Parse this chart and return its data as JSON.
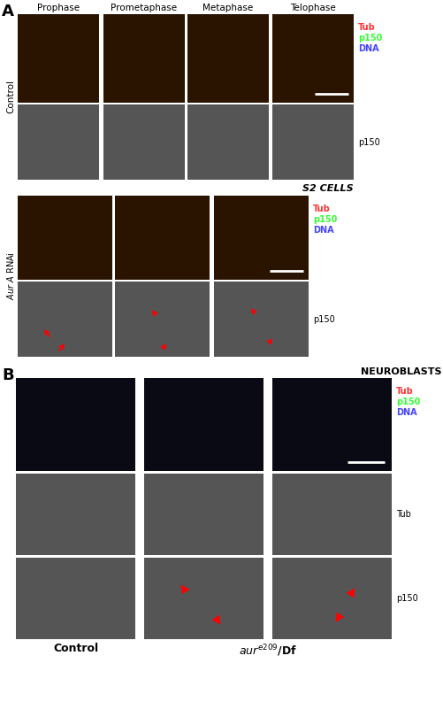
{
  "figure_width": 5.02,
  "figure_height": 7.93,
  "background_color": "#ffffff",
  "panel_A_label": "A",
  "panel_B_label": "B",
  "panel_A_top_labels": [
    "Prophase",
    "Prometaphase",
    "Metaphase",
    "Telophase"
  ],
  "s2_cells_label": "S2 CELLS",
  "neuroblasts_label": "NEUROBLASTS",
  "legend_colors": {
    "tub": "#ff0000",
    "p150": "#00ff00",
    "dna": "#0000ff"
  },
  "control_bottom_label": "Control",
  "aur_mutant_label": "aur$^{e209}$/Df",
  "scalebar_color": "#ffffff",
  "arrow_color": "#ff0000"
}
